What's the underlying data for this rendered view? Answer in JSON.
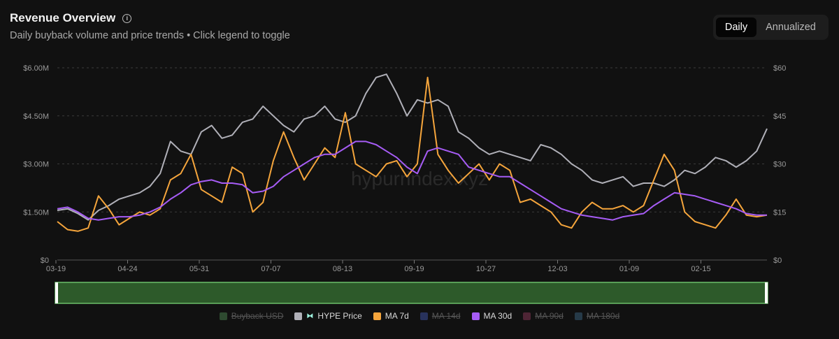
{
  "header": {
    "title": "Revenue Overview",
    "subtitle": "Daily buyback volume and price trends • Click legend to toggle",
    "info_glyph": "i"
  },
  "toggle": {
    "daily": "Daily",
    "annualized": "Annualized"
  },
  "watermark": "hypurrindex.xyz",
  "legend": [
    {
      "label": "Buyback USD",
      "color": "#2e4a30",
      "active": false
    },
    {
      "label": "HYPE Price",
      "color": "#b0b0b8",
      "active": true,
      "logo": true
    },
    {
      "label": "MA 7d",
      "color": "#f5a53c",
      "active": true
    },
    {
      "label": "MA 14d",
      "color": "#28325c",
      "active": false
    },
    {
      "label": "MA 30d",
      "color": "#a65cf5",
      "active": true
    },
    {
      "label": "MA 90d",
      "color": "#4e2535",
      "active": false
    },
    {
      "label": "MA 180d",
      "color": "#263a48",
      "active": false
    }
  ],
  "chart_data": {
    "type": "line",
    "x_tick_labels": [
      "03-19",
      "04-24",
      "05-31",
      "07-07",
      "08-13",
      "09-19",
      "10-27",
      "12-03",
      "01-09",
      "02-15"
    ],
    "y_left": {
      "ticks": [
        "$0",
        "$1.50M",
        "$3.00M",
        "$4.50M",
        "$6.00M"
      ],
      "range": [
        0,
        6000000
      ]
    },
    "y_right": {
      "ticks": [
        "$0",
        "$15",
        "$30",
        "$45",
        "$60"
      ],
      "range": [
        0,
        60
      ]
    },
    "grid": true,
    "legend_position": "bottom",
    "x": [
      0,
      5,
      10,
      15,
      20,
      25,
      30,
      35,
      40,
      45,
      50,
      55,
      60,
      65,
      70,
      75,
      80,
      85,
      90,
      95,
      100,
      105,
      110,
      115,
      120,
      125,
      130,
      135,
      140,
      145,
      150,
      155,
      160,
      165,
      170,
      175,
      180,
      185,
      190,
      195,
      200,
      205,
      210,
      215,
      220,
      225,
      230,
      235,
      240,
      245,
      250,
      255,
      260,
      265,
      270,
      275,
      280,
      285,
      290,
      295,
      300,
      305,
      310,
      315,
      320,
      325,
      330,
      335,
      340,
      345
    ],
    "series": [
      {
        "name": "HYPE Price",
        "axis": "right",
        "color": "#b0b0b8",
        "values": [
          15.5,
          16,
          14.5,
          12.5,
          15.5,
          17,
          19,
          20,
          21,
          23,
          27,
          37,
          34,
          33,
          40,
          42,
          38,
          39,
          43,
          44,
          48,
          45,
          42,
          40,
          44,
          45,
          48,
          44,
          43,
          45,
          52,
          57,
          58,
          52,
          45,
          50,
          49,
          50,
          48,
          40,
          38,
          35,
          33,
          34,
          33,
          32,
          31,
          36,
          35,
          33,
          30,
          28,
          25,
          24,
          25,
          26,
          23,
          24,
          24,
          23,
          25,
          28,
          27,
          29,
          32,
          31,
          29,
          31,
          34,
          41
        ]
      },
      {
        "name": "MA 7d",
        "axis": "left",
        "color": "#f5a53c",
        "values": [
          1200000,
          950000,
          900000,
          1000000,
          2000000,
          1600000,
          1100000,
          1300000,
          1500000,
          1400000,
          1600000,
          2500000,
          2700000,
          3300000,
          2200000,
          2000000,
          1800000,
          2900000,
          2700000,
          1500000,
          1800000,
          3100000,
          4000000,
          3200000,
          2500000,
          3000000,
          3500000,
          3200000,
          4600000,
          3000000,
          2800000,
          2600000,
          3000000,
          3100000,
          2600000,
          3000000,
          5700000,
          3300000,
          2800000,
          2400000,
          2700000,
          3000000,
          2500000,
          3000000,
          2800000,
          1800000,
          1900000,
          1700000,
          1500000,
          1100000,
          1000000,
          1500000,
          1800000,
          1600000,
          1600000,
          1700000,
          1500000,
          1700000,
          2500000,
          3300000,
          2800000,
          1500000,
          1200000,
          1100000,
          1000000,
          1400000,
          1900000,
          1400000,
          1350000,
          1400000
        ]
      },
      {
        "name": "MA 30d",
        "axis": "left",
        "color": "#a65cf5",
        "values": [
          1600000,
          1650000,
          1500000,
          1300000,
          1250000,
          1300000,
          1350000,
          1350000,
          1400000,
          1500000,
          1650000,
          1900000,
          2100000,
          2350000,
          2450000,
          2500000,
          2400000,
          2400000,
          2350000,
          2100000,
          2150000,
          2300000,
          2600000,
          2800000,
          3000000,
          3200000,
          3300000,
          3300000,
          3500000,
          3700000,
          3700000,
          3600000,
          3400000,
          3200000,
          2900000,
          2700000,
          3400000,
          3500000,
          3400000,
          3300000,
          2900000,
          2800000,
          2700000,
          2600000,
          2600000,
          2400000,
          2200000,
          2000000,
          1800000,
          1600000,
          1500000,
          1400000,
          1350000,
          1300000,
          1250000,
          1350000,
          1400000,
          1450000,
          1700000,
          1900000,
          2100000,
          2050000,
          2000000,
          1900000,
          1800000,
          1700000,
          1600000,
          1450000,
          1400000,
          1400000
        ]
      }
    ]
  }
}
